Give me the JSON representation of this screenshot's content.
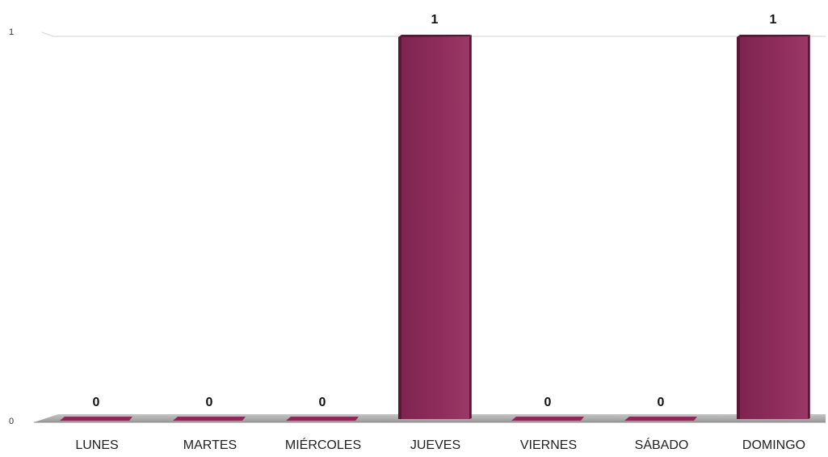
{
  "chart_data": {
    "type": "bar",
    "categories": [
      "LUNES",
      "MARTES",
      "MIÉRCOLES",
      "JUEVES",
      "VIERNES",
      "SÁBADO",
      "DOMINGO"
    ],
    "values": [
      0,
      0,
      0,
      1,
      0,
      0,
      1
    ],
    "data_labels": [
      "0",
      "0",
      "0",
      "1",
      "0",
      "0",
      "1"
    ],
    "y_ticks": [
      "0",
      "1"
    ],
    "ylim": [
      0,
      1
    ],
    "title": "",
    "xlabel": "",
    "ylabel": "",
    "grid": true,
    "style": "3d",
    "bar_color": "#8b2a57",
    "bar_shadow_color": "#5c1635",
    "floor_color": "#aaaaaa"
  }
}
